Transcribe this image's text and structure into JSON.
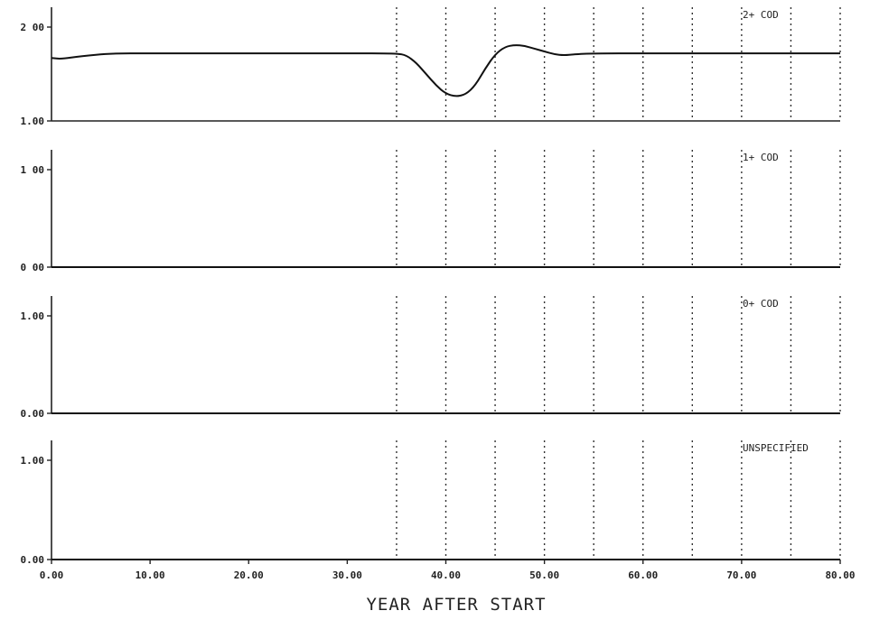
{
  "chart_data": {
    "type": "line",
    "xlabel": "YEAR AFTER START",
    "xlim": [
      0,
      80
    ],
    "x_ticks": [
      "0.00",
      "10.00",
      "20.00",
      "30.00",
      "40.00",
      "50.00",
      "60.00",
      "70.00",
      "80.00"
    ],
    "vertical_markers": [
      35,
      40,
      45,
      50,
      55,
      60,
      65,
      70,
      75,
      80
    ],
    "panels": [
      {
        "label": "2+ COD",
        "ylim": [
          1.0,
          2.0
        ],
        "y_ticks": [
          {
            "value": 2.0,
            "label": "2 00"
          },
          {
            "value": 1.0,
            "label": "1.00"
          }
        ],
        "series": {
          "x": [
            0,
            1,
            3,
            6,
            10,
            20,
            30,
            35,
            36,
            37,
            38,
            39,
            40,
            41,
            42,
            43,
            44,
            45,
            46,
            47,
            48,
            49,
            50,
            51,
            52,
            53,
            55,
            60,
            70,
            80
          ],
          "y": [
            1.67,
            1.66,
            1.69,
            1.72,
            1.72,
            1.72,
            1.72,
            1.72,
            1.7,
            1.62,
            1.5,
            1.38,
            1.29,
            1.26,
            1.28,
            1.38,
            1.56,
            1.71,
            1.79,
            1.81,
            1.8,
            1.77,
            1.74,
            1.71,
            1.7,
            1.71,
            1.72,
            1.72,
            1.72,
            1.72
          ]
        }
      },
      {
        "label": "1+ COD",
        "ylim": [
          0.0,
          1.0
        ],
        "y_ticks": [
          {
            "value": 1.0,
            "label": "1 00"
          },
          {
            "value": 0.0,
            "label": "0 00"
          }
        ],
        "series": {
          "x": [
            0,
            80
          ],
          "y": [
            0.0,
            0.0
          ]
        }
      },
      {
        "label": "0+ COD",
        "ylim": [
          0.0,
          1.0
        ],
        "y_ticks": [
          {
            "value": 1.0,
            "label": "1.00"
          },
          {
            "value": 0.0,
            "label": "0.00"
          }
        ],
        "series": {
          "x": [
            0,
            80
          ],
          "y": [
            0.0,
            0.0
          ]
        }
      },
      {
        "label": "UNSPECIFIED",
        "ylim": [
          0.0,
          1.0
        ],
        "y_ticks": [
          {
            "value": 1.0,
            "label": "1.00"
          },
          {
            "value": 0.0,
            "label": "0.00"
          }
        ],
        "series": {
          "x": [
            0,
            80
          ],
          "y": [
            0.0,
            0.0
          ]
        }
      }
    ]
  }
}
